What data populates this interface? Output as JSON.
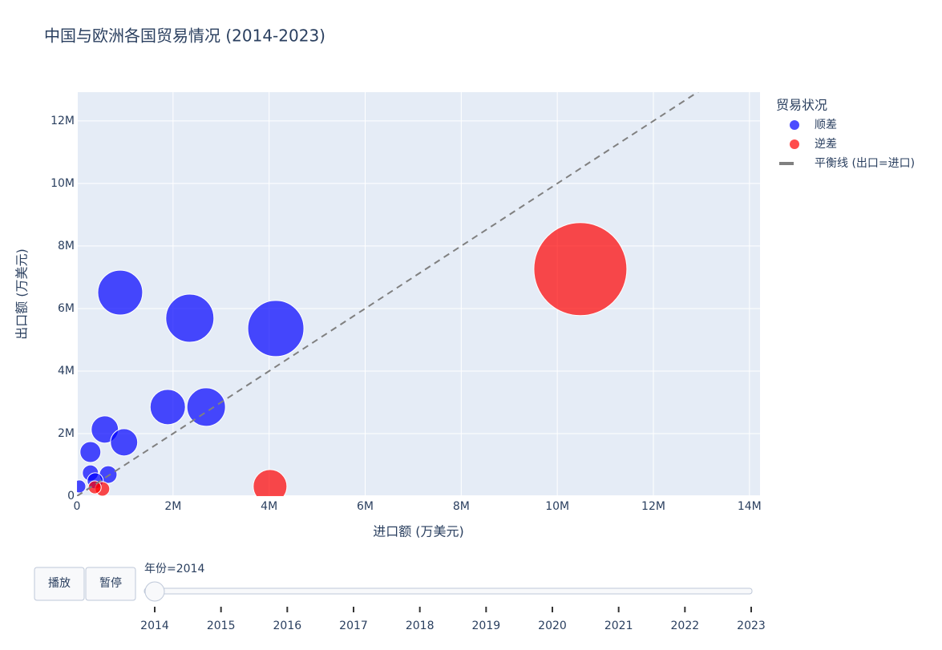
{
  "chart_data": {
    "type": "scatter",
    "title": "中国与欧洲各国贸易情况 (2014-2023)",
    "x_label": "进口额 (万美元)",
    "y_label": "出口额 (万美元)",
    "legend_title": "贸易状况",
    "legend": "right",
    "grid": true,
    "xlim": [
      0,
      14220000
    ],
    "ylim": [
      0,
      12920000
    ],
    "xticks": [
      0,
      {
        "value": 2000000,
        "label": "2M"
      },
      {
        "value": 4000000,
        "label": "4M"
      },
      {
        "value": 6000000,
        "label": "6M"
      },
      {
        "value": 8000000,
        "label": "8M"
      },
      {
        "value": 10000000,
        "label": "10M"
      },
      {
        "value": 12000000,
        "label": "12M"
      },
      {
        "value": 14000000,
        "label": "14M"
      }
    ],
    "yticks": [
      0,
      {
        "value": 2000000,
        "label": "2M"
      },
      {
        "value": 4000000,
        "label": "4M"
      },
      {
        "value": 6000000,
        "label": "6M"
      },
      {
        "value": 8000000,
        "label": "8M"
      },
      {
        "value": 10000000,
        "label": "10M"
      },
      {
        "value": 12000000,
        "label": "12M"
      }
    ],
    "series": [
      {
        "name": "顺差",
        "color": "#0000ff",
        "mode": "markers",
        "x": [
          900000,
          2350000,
          4140000,
          1890000,
          2690000,
          580000,
          980000,
          280000,
          280000,
          650000,
          380000,
          50000
        ],
        "values": [
          6510000,
          5690000,
          5360000,
          2850000,
          2850000,
          2130000,
          1720000,
          1410000,
          740000,
          690000,
          490000,
          310000
        ],
        "sizes": [
          4130000,
          4750000,
          6460000,
          2550000,
          3040000,
          1520000,
          1520000,
          890000,
          530000,
          640000,
          530000,
          340000
        ]
      },
      {
        "name": "逆差",
        "color": "#ff0000",
        "mode": "markers",
        "x": [
          10480000,
          4020000,
          530000,
          370000
        ],
        "values": [
          7260000,
          310000,
          230000,
          280000
        ],
        "sizes": [
          17740000,
          2330000,
          430000,
          340000
        ]
      },
      {
        "name": "平衡线 (出口=进口)",
        "color": "#808080",
        "mode": "line",
        "dash": true,
        "x": [
          0,
          12950000
        ],
        "values": [
          0,
          12950000
        ]
      }
    ],
    "controls": {
      "buttons": [
        "播放",
        "暂停"
      ],
      "current_label": "年份=2014",
      "current": 2014,
      "steps": [
        2014,
        2015,
        2016,
        2017,
        2018,
        2019,
        2020,
        2021,
        2022,
        2023
      ]
    }
  }
}
